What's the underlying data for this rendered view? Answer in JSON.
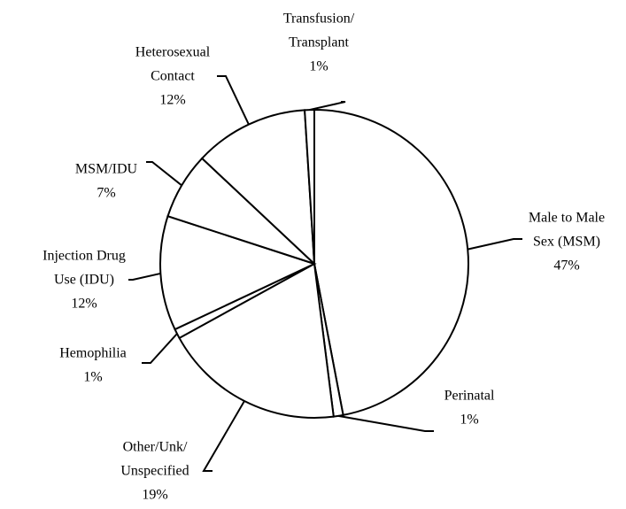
{
  "chart_data": {
    "type": "pie",
    "categories": [
      [
        "Male to Male",
        "Sex (MSM)"
      ],
      [
        "Perinatal"
      ],
      [
        "Other/Unk/",
        "Unspecified"
      ],
      [
        "Hemophilia"
      ],
      [
        "Injection Drug",
        "Use (IDU)"
      ],
      [
        "MSM/IDU"
      ],
      [
        "Heterosexual",
        "Contact"
      ],
      [
        "Transfusion/",
        "Transplant"
      ]
    ],
    "values": [
      47,
      1,
      19,
      1,
      12,
      7,
      12,
      1
    ],
    "value_labels": [
      "47%",
      "1%",
      "19%",
      "1%",
      "12%",
      "7%",
      "12%",
      "1%"
    ],
    "color": "#ffffff"
  }
}
